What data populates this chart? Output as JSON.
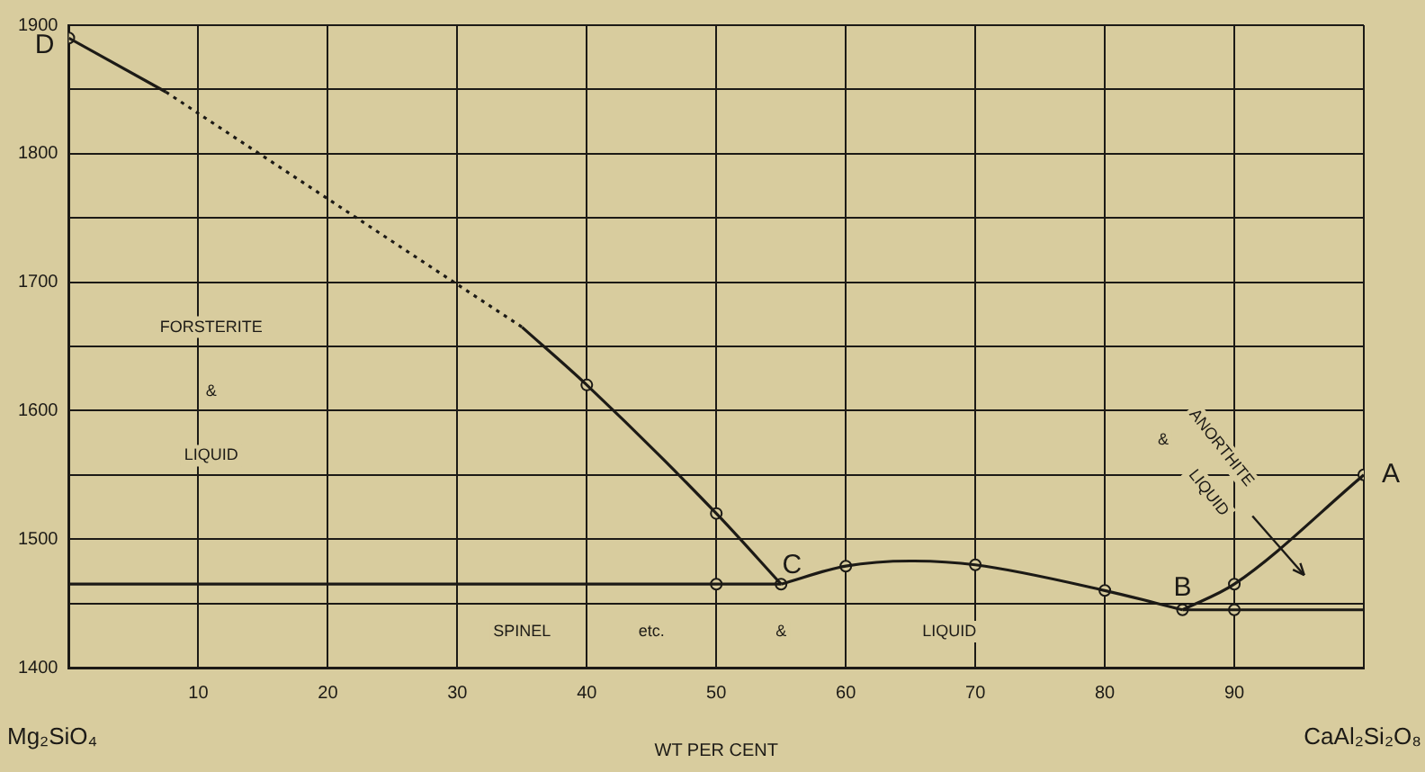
{
  "chart_data": {
    "type": "line",
    "xlabel": "WT PER CENT",
    "xlim": [
      0,
      100
    ],
    "ylim": [
      1400,
      1900
    ],
    "xticks": [
      {
        "value": 0,
        "label": null
      },
      10,
      20,
      30,
      40,
      50,
      60,
      70,
      80,
      90,
      {
        "value": 100,
        "label": null
      }
    ],
    "yticks": [
      1400,
      {
        "value": 1450,
        "label": null
      },
      1500,
      {
        "value": 1550,
        "label": null
      },
      1600,
      {
        "value": 1650,
        "label": null
      },
      1700,
      {
        "value": 1750,
        "label": null
      },
      1800,
      {
        "value": 1850,
        "label": null
      },
      1900
    ],
    "grid": true,
    "legend": false,
    "series": [
      {
        "color": "#1c1a16",
        "line_style": "solid",
        "x": [
          0,
          7.5
        ],
        "values": [
          1890,
          1848
        ]
      },
      {
        "color": "#1c1a16",
        "line_style": "dotted",
        "x": [
          7.5,
          35
        ],
        "values": [
          1848,
          1665
        ]
      },
      {
        "color": "#1c1a16",
        "line_style": "solid",
        "x": [
          35,
          40,
          50,
          55
        ],
        "values": [
          1665,
          1620,
          1520,
          1465
        ]
      },
      {
        "color": "#1c1a16",
        "line_style": "solid",
        "x": [
          0,
          55
        ],
        "values": [
          1465,
          1465
        ]
      },
      {
        "color": "#1c1a16",
        "line_style": "solid",
        "x": [
          55,
          60,
          65,
          70,
          80,
          86
        ],
        "values": [
          1465,
          1479,
          1483,
          1480,
          1460,
          1445
        ]
      },
      {
        "color": "#1c1a16",
        "line_style": "solid",
        "x": [
          86,
          90,
          100
        ],
        "values": [
          1445,
          1465,
          1550
        ]
      },
      {
        "color": "#1c1a16",
        "line_style": "solid",
        "x": [
          86,
          100
        ],
        "values": [
          1445,
          1445
        ]
      },
      {
        "type": "scatter",
        "color": "#1c1a16",
        "marker": "circle",
        "x": [
          0,
          40,
          50,
          50,
          55,
          60,
          70,
          80,
          86,
          90,
          90,
          100
        ],
        "values": [
          1890,
          1620,
          1520,
          1465,
          1465,
          1479,
          1480,
          1460,
          1445,
          1465,
          1445,
          1550
        ]
      }
    ],
    "annotations": [
      {
        "text": "D",
        "x": 0,
        "y": 1890
      },
      {
        "text": "C",
        "x": 55,
        "y": 1465
      },
      {
        "text": "B",
        "x": 86,
        "y": 1445
      },
      {
        "text": "A",
        "x": 100,
        "y": 1550
      },
      "FORSTERITE",
      "&",
      "LIQUID",
      "SPINEL",
      "etc.",
      "&",
      "LIQUID",
      "ANORTHITE",
      "&",
      "LIQUID",
      "Mg₂SiO₄",
      "CaAl₂Si₂O₈"
    ]
  }
}
